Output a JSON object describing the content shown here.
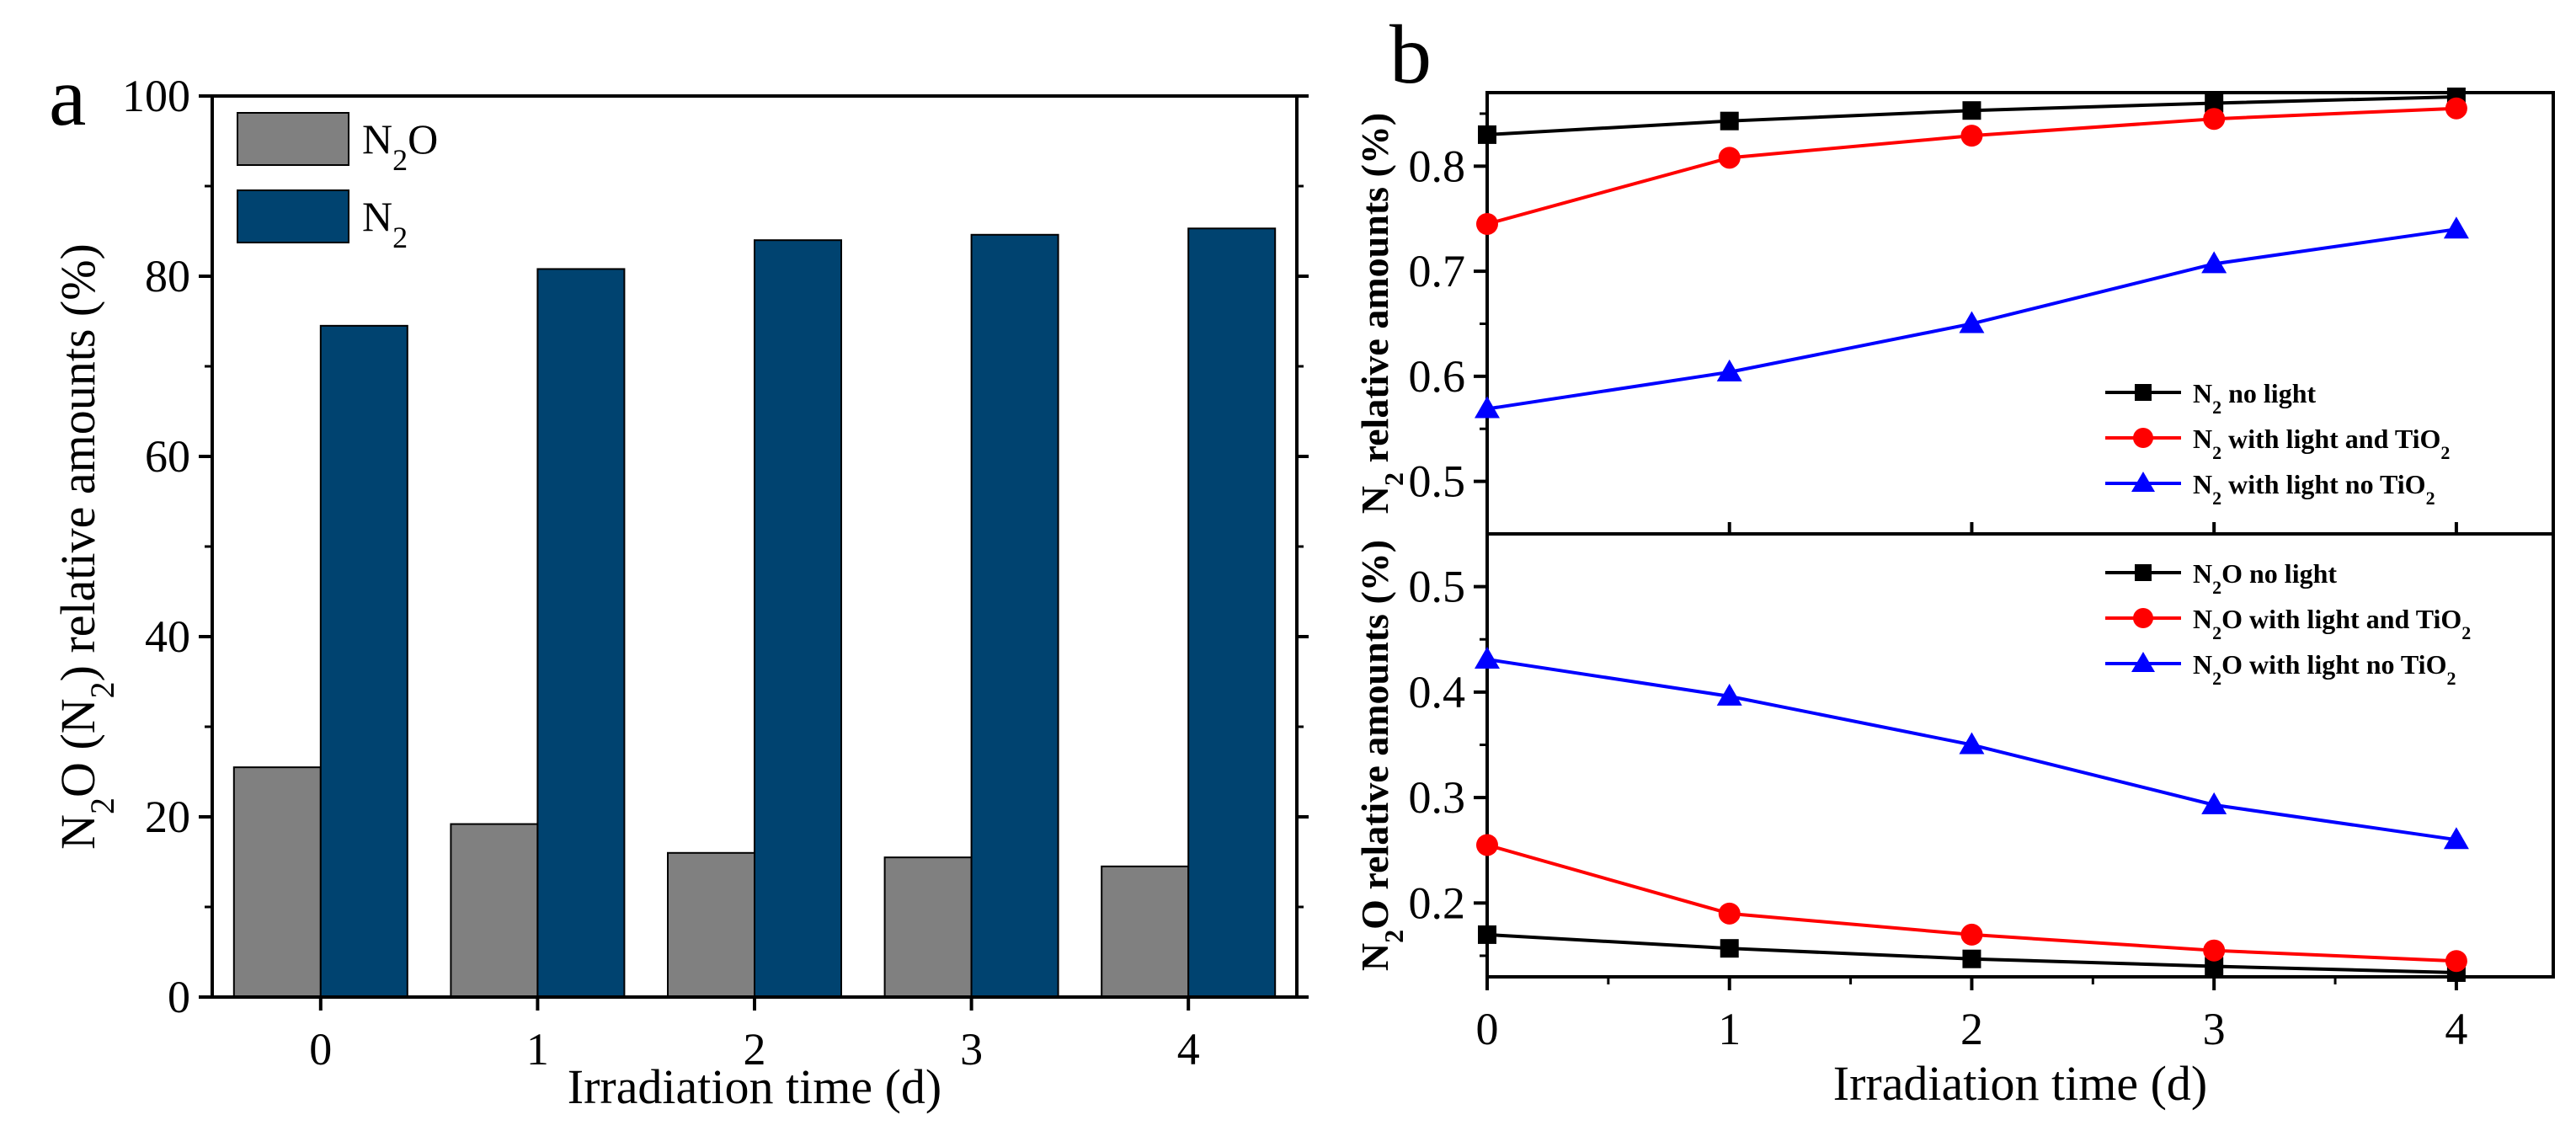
{
  "chart_data": [
    {
      "panel": "a",
      "type": "bar",
      "categories": [
        "0",
        "1",
        "2",
        "3",
        "4"
      ],
      "series": [
        {
          "name": "N2O",
          "label_base": "N",
          "label_sub": "2",
          "label_tail": "O",
          "color": "#808080",
          "values": [
            25.5,
            19.2,
            16.0,
            15.5,
            14.5
          ]
        },
        {
          "name": "N2",
          "label_base": "N",
          "label_sub": "2",
          "label_tail": "",
          "color": "#004370",
          "values": [
            74.5,
            80.8,
            84.0,
            84.6,
            85.3
          ]
        }
      ],
      "ylim": [
        0,
        100
      ],
      "yticks": [
        0,
        20,
        40,
        60,
        80,
        100
      ],
      "xlabel": "Irradiation time (d)",
      "ylabel": {
        "p1": "N",
        "s1": "2",
        "p2": "O (N",
        "s2": "2",
        "p3": ") relative amounts (%)"
      }
    },
    {
      "panel": "b-top",
      "type": "line",
      "x": [
        0,
        1,
        2,
        3,
        4
      ],
      "xlim": [
        0,
        4.4
      ],
      "ylim": [
        0.45,
        0.87
      ],
      "yticks": [
        0.5,
        0.6,
        0.7,
        0.8
      ],
      "ylabel": {
        "p1": "N",
        "s1": "2",
        "p2": " relative amounts (%)"
      },
      "series": [
        {
          "name": "N2 no light",
          "label_base": "N",
          "label_sub": "2",
          "label_tail": " no light",
          "label_sub2": "",
          "color": "#000000",
          "marker": "square",
          "values": [
            0.83,
            0.843,
            0.853,
            0.86,
            0.866
          ]
        },
        {
          "name": "N2 with light and TiO2",
          "label_base": "N",
          "label_sub": "2",
          "label_tail": " with light and TiO",
          "label_sub2": "2",
          "color": "#ff0000",
          "marker": "circle",
          "values": [
            0.745,
            0.808,
            0.829,
            0.845,
            0.855
          ]
        },
        {
          "name": "N2 with light no TiO2",
          "label_base": "N",
          "label_sub": "2",
          "label_tail": " with light no TiO",
          "label_sub2": "2",
          "color": "#0000ff",
          "marker": "triangle",
          "values": [
            0.569,
            0.604,
            0.65,
            0.707,
            0.74
          ]
        }
      ]
    },
    {
      "panel": "b-bottom",
      "type": "line",
      "x": [
        0,
        1,
        2,
        3,
        4
      ],
      "xlim": [
        0,
        4.4
      ],
      "ylim": [
        0.13,
        0.55
      ],
      "yticks": [
        0.2,
        0.3,
        0.4,
        0.5
      ],
      "xticks": [
        0,
        1,
        2,
        3,
        4
      ],
      "xlabel": "Irradiation time (d)",
      "ylabel": {
        "p1": "N",
        "s1": "2",
        "p2": "O relative amounts (%)"
      },
      "series": [
        {
          "name": "N2O no light",
          "label_base": "N",
          "label_sub": "2",
          "label_tail": "O no light",
          "label_sub2": "",
          "color": "#000000",
          "marker": "square",
          "values": [
            0.17,
            0.157,
            0.147,
            0.14,
            0.134
          ]
        },
        {
          "name": "N2O with light and TiO2",
          "label_base": "N",
          "label_sub": "2",
          "label_tail": "O with light and TiO",
          "label_sub2": "2",
          "color": "#ff0000",
          "marker": "circle",
          "values": [
            0.255,
            0.19,
            0.17,
            0.155,
            0.145
          ]
        },
        {
          "name": "N2O with light no TiO2",
          "label_base": "N",
          "label_sub": "2",
          "label_tail": "O with light no TiO",
          "label_sub2": "2",
          "color": "#0000ff",
          "marker": "triangle",
          "values": [
            0.431,
            0.396,
            0.35,
            0.293,
            0.26
          ]
        }
      ]
    }
  ],
  "panel_labels": {
    "a": "a",
    "b": "b"
  }
}
